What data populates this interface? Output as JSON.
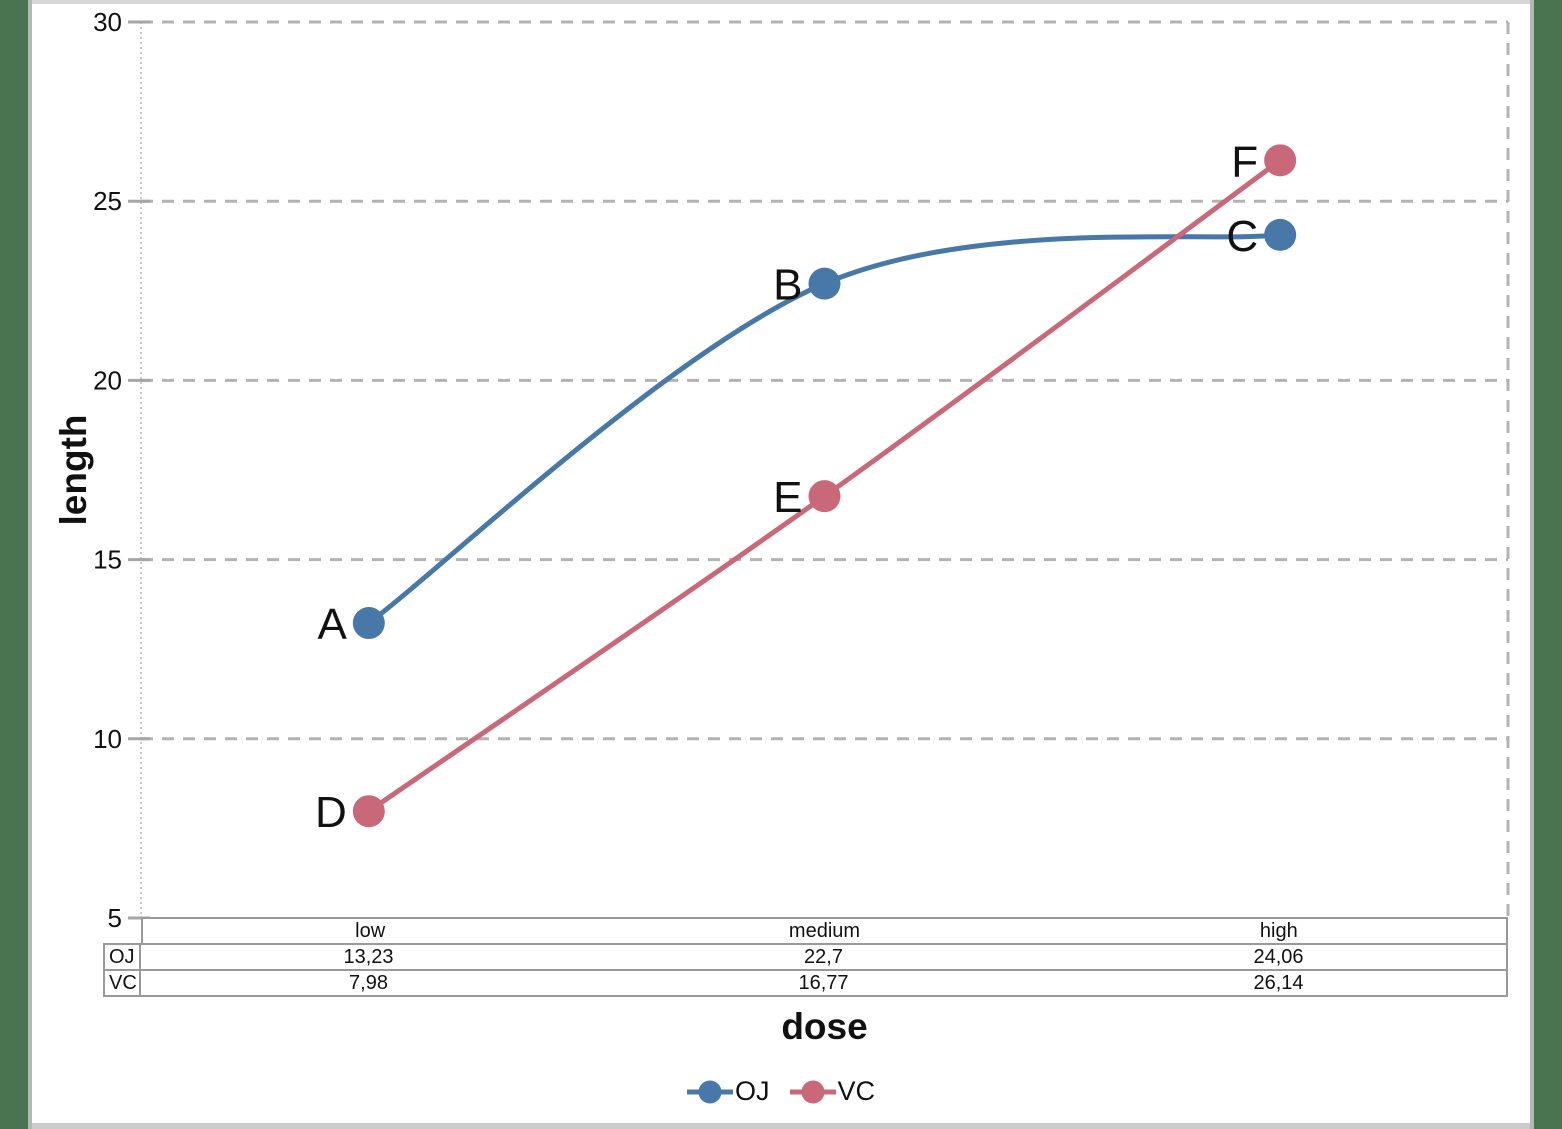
{
  "frame": {
    "background_color": "#4A7350",
    "canvas_color": "#FFFFFF",
    "border_top_color": "#D6D6D6",
    "border_bottom_color": "#CBCBCB",
    "border_side_color": "#B4B8B4"
  },
  "chart_data": {
    "type": "line",
    "title": "",
    "xlabel": "dose",
    "ylabel": "length",
    "categories": [
      "low",
      "medium",
      "high"
    ],
    "series": [
      {
        "name": "OJ",
        "color": "#4878A8",
        "values": [
          13.23,
          22.7,
          24.06
        ],
        "point_labels": [
          "A",
          "B",
          "C"
        ],
        "smooth": true
      },
      {
        "name": "VC",
        "color": "#C96878",
        "values": [
          7.98,
          16.77,
          26.14
        ],
        "point_labels": [
          "D",
          "E",
          "F"
        ],
        "smooth": true
      }
    ],
    "ylim": [
      5,
      30
    ],
    "yticks": [
      30,
      25,
      20,
      15,
      10,
      5
    ],
    "ytick_labels": [
      "30",
      "25",
      "20",
      "15",
      "10",
      "5"
    ],
    "grid": "horizontal-dashed",
    "gridline_color": "#B3B3B3",
    "axis_color": "#A6A6A6",
    "y_axis_line_color": "#C9C9C9",
    "legend_position": "bottom"
  },
  "table": {
    "header": [
      "low",
      "medium",
      "high"
    ],
    "rows": [
      {
        "label": "OJ",
        "values": [
          "13,23",
          "22,7",
          "24,06"
        ]
      },
      {
        "label": "VC",
        "values": [
          "7,98",
          "16,77",
          "26,14"
        ]
      }
    ],
    "border_color": "#999999"
  },
  "legend": {
    "items": [
      {
        "label": "OJ",
        "color": "#4878A8"
      },
      {
        "label": "VC",
        "color": "#C96878"
      }
    ]
  }
}
